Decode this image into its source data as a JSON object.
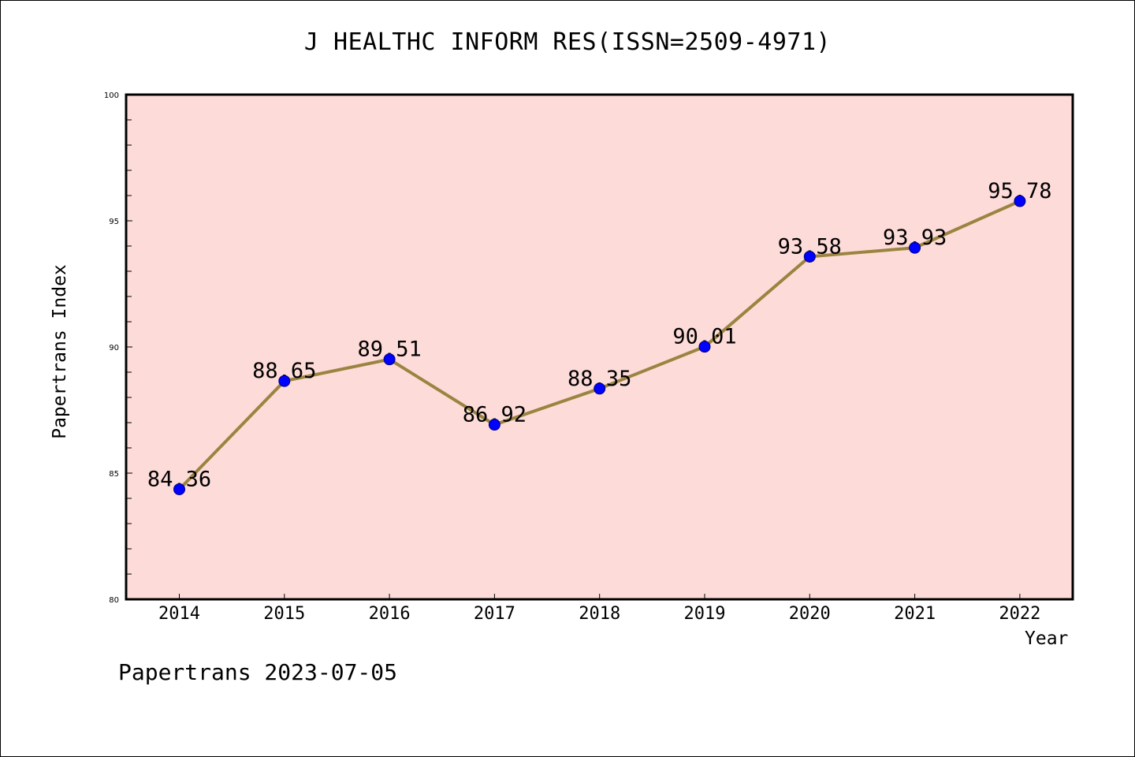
{
  "chart_data": {
    "type": "line",
    "title": "J HEALTHC INFORM RES(ISSN=2509-4971)",
    "xlabel": "Year",
    "ylabel": "Papertrans Index",
    "footer": "Papertrans 2023-07-05",
    "categories": [
      "2014",
      "2015",
      "2016",
      "2017",
      "2018",
      "2019",
      "2020",
      "2021",
      "2022"
    ],
    "series": [
      {
        "values": [
          84.36,
          88.65,
          89.51,
          86.92,
          88.35,
          90.01,
          93.58,
          93.93,
          95.78
        ],
        "labels": [
          "84.36",
          "88.65",
          "89.51",
          "86.92",
          "88.35",
          "90.01",
          "93.58",
          "93.93",
          "95.78"
        ]
      }
    ],
    "ylim": [
      80,
      100
    ],
    "yticks": [
      "80",
      "85",
      "90",
      "95",
      "100"
    ],
    "grid": false,
    "legend": "none",
    "colors": {
      "plot_background": "#fddbd8",
      "line": "#9a8440",
      "marker": "#0000ff",
      "axis": "#000000"
    }
  }
}
